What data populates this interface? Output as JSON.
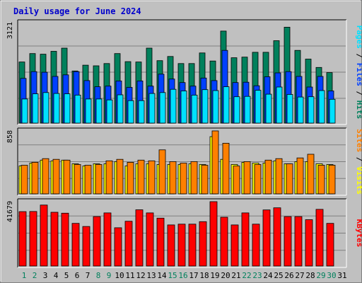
{
  "title": "Daily usage for June 2024",
  "colors": {
    "title": "#0000cc",
    "hits": "#00805c",
    "files": "#0040ff",
    "pages": "#00e0ff",
    "visits": "#ffff00",
    "sites": "#ff8000",
    "kbytes": "#ff0000",
    "panel_bg": "#c0c0c0",
    "weekend_day": "#00805c"
  },
  "chart_data": [
    {
      "type": "bar",
      "title": "",
      "ymax_label": "3121",
      "ylim": [
        0,
        3121
      ],
      "categories": [
        "1",
        "2",
        "3",
        "4",
        "5",
        "6",
        "7",
        "8",
        "9",
        "10",
        "11",
        "12",
        "13",
        "14",
        "15",
        "16",
        "17",
        "18",
        "19",
        "20",
        "21",
        "22",
        "23",
        "24",
        "25",
        "26",
        "27",
        "28",
        "29",
        "30",
        "31"
      ],
      "weekend_days": [
        "1",
        "2",
        "8",
        "9",
        "15",
        "16",
        "22",
        "23",
        "29",
        "30"
      ],
      "series": [
        {
          "name": "Hits",
          "color": "#00805c",
          "values": [
            1900,
            2160,
            2140,
            2230,
            2330,
            1620,
            1800,
            1780,
            1850,
            2160,
            1910,
            1900,
            2330,
            1940,
            2070,
            1850,
            1850,
            2180,
            1930,
            2860,
            2030,
            2050,
            2200,
            2200,
            2560,
            2980,
            2260,
            1990,
            1730,
            1570,
            0
          ]
        },
        {
          "name": "Files",
          "color": "#0040ff",
          "values": [
            1390,
            1600,
            1580,
            1450,
            1500,
            1600,
            1320,
            1130,
            1150,
            1310,
            1110,
            1310,
            1150,
            1520,
            1370,
            1260,
            1150,
            1400,
            1320,
            2260,
            1260,
            1270,
            1160,
            1440,
            1560,
            1600,
            1450,
            1120,
            1450,
            1000,
            0
          ]
        },
        {
          "name": "Pages",
          "color": "#00e0ff",
          "values": [
            750,
            910,
            950,
            920,
            910,
            870,
            750,
            750,
            720,
            880,
            700,
            700,
            920,
            950,
            1050,
            1000,
            870,
            1040,
            1010,
            1130,
            820,
            830,
            1020,
            900,
            1120,
            890,
            810,
            820,
            1010,
            740,
            0
          ]
        }
      ]
    },
    {
      "type": "bar",
      "title": "",
      "ymax_label": "858",
      "ylim": [
        0,
        858
      ],
      "categories": [
        "1",
        "2",
        "3",
        "4",
        "5",
        "6",
        "7",
        "8",
        "9",
        "10",
        "11",
        "12",
        "13",
        "14",
        "15",
        "16",
        "17",
        "18",
        "19",
        "20",
        "21",
        "22",
        "23",
        "24",
        "25",
        "26",
        "27",
        "28",
        "29",
        "30",
        "31"
      ],
      "series": [
        {
          "name": "Visits",
          "color": "#ffff00",
          "values": [
            380,
            420,
            460,
            450,
            460,
            410,
            380,
            410,
            410,
            440,
            380,
            410,
            410,
            400,
            400,
            400,
            410,
            400,
            780,
            470,
            400,
            430,
            420,
            420,
            450,
            410,
            440,
            440,
            410,
            400,
            0
          ]
        },
        {
          "name": "Sites",
          "color": "#ff8000",
          "values": [
            390,
            430,
            480,
            470,
            460,
            400,
            390,
            400,
            450,
            470,
            430,
            460,
            450,
            600,
            440,
            420,
            440,
            390,
            858,
            690,
            380,
            440,
            400,
            460,
            480,
            410,
            490,
            540,
            390,
            390,
            0
          ]
        }
      ]
    },
    {
      "type": "bar",
      "title": "",
      "ymax_label": "41679",
      "ylim": [
        0,
        41679
      ],
      "categories": [
        "1",
        "2",
        "3",
        "4",
        "5",
        "6",
        "7",
        "8",
        "9",
        "10",
        "11",
        "12",
        "13",
        "14",
        "15",
        "16",
        "17",
        "18",
        "19",
        "20",
        "21",
        "22",
        "23",
        "24",
        "25",
        "26",
        "27",
        "28",
        "29",
        "30",
        "31"
      ],
      "series": [
        {
          "name": "KBytes",
          "color": "#ff0000",
          "values": [
            35200,
            35300,
            39500,
            34800,
            34200,
            27600,
            25600,
            32000,
            34400,
            24800,
            29000,
            36400,
            34400,
            31000,
            26600,
            27100,
            27100,
            28700,
            41679,
            31600,
            26600,
            34400,
            27100,
            36300,
            37700,
            32000,
            32000,
            30000,
            36700,
            27600,
            0
          ]
        }
      ]
    }
  ],
  "legends": [
    {
      "items": [
        "Pages",
        "Files",
        "Hits"
      ],
      "separator": "/"
    },
    {
      "items": [
        "Sites",
        "Visits"
      ],
      "separator": "/"
    },
    {
      "items": [
        "KBytes"
      ],
      "separator": ""
    }
  ],
  "day_labels": [
    "1",
    "2",
    "3",
    "4",
    "5",
    "6",
    "7",
    "8",
    "9",
    "10",
    "11",
    "12",
    "13",
    "14",
    "15",
    "16",
    "17",
    "18",
    "19",
    "20",
    "21",
    "22",
    "23",
    "24",
    "25",
    "26",
    "27",
    "28",
    "29",
    "30",
    "31"
  ]
}
